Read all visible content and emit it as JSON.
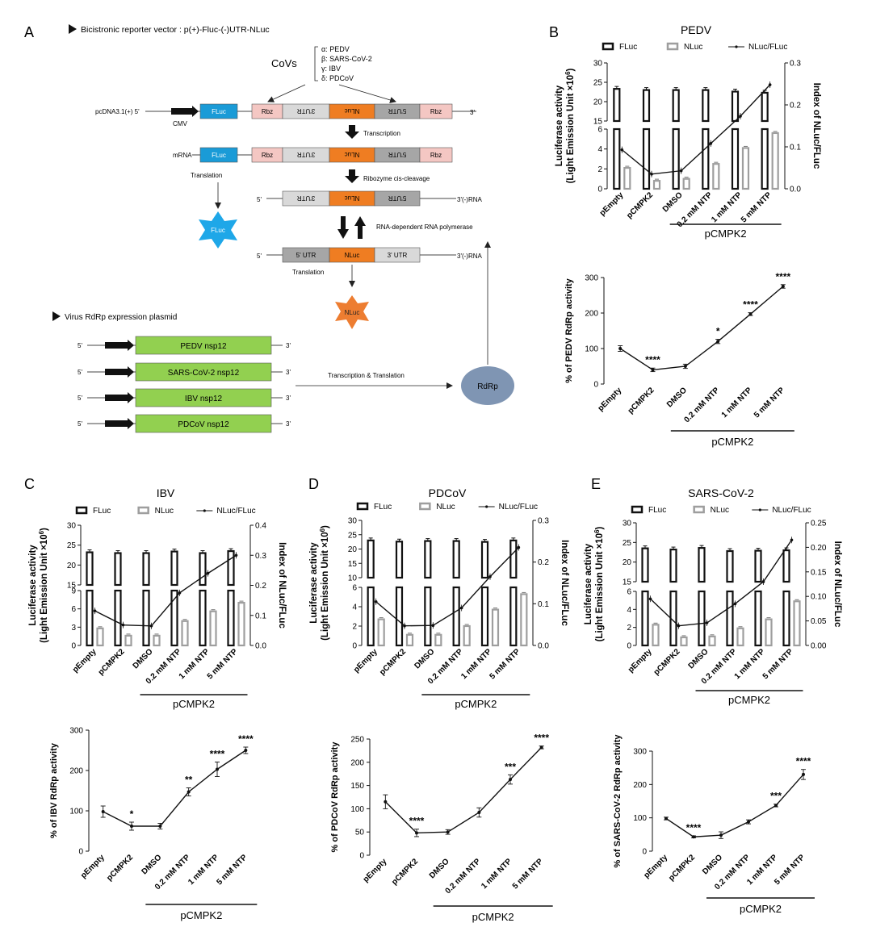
{
  "panel_letters": {
    "A": "A",
    "B": "B",
    "C": "C",
    "D": "D",
    "E": "E"
  },
  "schematic": {
    "vector_title": "Bicistronic reporter vector : p(+)-Fluc-(-)UTR-NLuc",
    "covs_label": "CoVs",
    "covs_list": [
      "α: PEDV",
      "β: SARS-CoV-2",
      "γ: IBV",
      "δ: PDCoV"
    ],
    "pcdna_label": "pcDNA3.1(+) 5'",
    "cmv_label": "CMV",
    "fluc": "FLuc",
    "rbz": "Rbz",
    "utr3": "3'UTR",
    "utr5": "5'UTR",
    "nluc": "NLuc",
    "five_prime": "5'",
    "three_prime": "3'",
    "mrna_label": "mRNA",
    "transcription": "Transcription",
    "translation": "Translation",
    "ribozyme": "Ribozyme cis-cleavage",
    "minus_rna": "3'(-)RNA",
    "rdrp_pol": "RNA-dependent RNA polymerase",
    "plus_utr5": "5' UTR",
    "plus_utr3": "3' UTR",
    "plus_rna": "3'(-)RNA",
    "fluc_star": "FLuc",
    "nluc_star": "NLuc",
    "plasmid_title": "Virus RdRp expression plasmid",
    "nsp12": [
      "PEDV nsp12",
      "SARS-CoV-2 nsp12",
      "IBV nsp12",
      "PDCoV nsp12"
    ],
    "tt_label": "Transcription & Translation",
    "rdrp": "RdRp"
  },
  "colors": {
    "fluc_blue": "#1a9bd7",
    "rbz_pink": "#f4c7c3",
    "utr_gray": "#d9d9d9",
    "utr_dark": "#a6a6a6",
    "nluc_orange": "#ef7d22",
    "nsp12_green": "#92d050",
    "rdrp_blue": "#7f95b3",
    "nluc_star": "#ed7d31",
    "fluc_star": "#1ea7e8"
  },
  "common": {
    "left_axis_line1": "Luciferase activity",
    "left_axis_line2": "(Light Emission Unit ×10",
    "left_axis_sup": "6",
    "left_axis_close": ")",
    "right_axis": "Index of NLuc/FLuc",
    "legend_fluc": "FLuc",
    "legend_nluc": "NLuc",
    "legend_ratio": "NLuc/FLuc",
    "group_label": "pCMPK2"
  },
  "chart_data": [
    {
      "id": "B-top",
      "type": "bar",
      "title": "PEDV",
      "categories": [
        "pEmpty",
        "pCMPK2",
        "DMSO",
        "0.2 mM NTP",
        "1 mM NTP",
        "5 mM NTP"
      ],
      "series": [
        {
          "name": "FLuc",
          "values": [
            23.3,
            23.0,
            23.0,
            23.0,
            22.6,
            22.3
          ],
          "axis": "left"
        },
        {
          "name": "NLuc",
          "values": [
            2.1,
            0.8,
            1.0,
            2.5,
            4.1,
            5.6
          ],
          "axis": "left"
        },
        {
          "name": "NLuc/FLuc",
          "values": [
            0.093,
            0.035,
            0.043,
            0.108,
            0.173,
            0.248
          ],
          "axis": "right"
        }
      ],
      "left_ticks_upper": [
        15,
        20,
        25,
        30
      ],
      "left_ticks_lower": [
        0,
        2,
        4,
        6
      ],
      "right_ticks": [
        0.0,
        0.1,
        0.2,
        0.3
      ],
      "right_tick_labels": [
        "0.0",
        "0.1",
        "0.2",
        "0.3"
      ],
      "ylabel": "Luciferase activity (Light Emission Unit ×10^6)",
      "y2label": "Index of NLuc/FLuc"
    },
    {
      "id": "B-bottom",
      "type": "line",
      "title": "",
      "categories": [
        "pEmpty",
        "pCMPK2",
        "DMSO",
        "0.2 mM NTP",
        "1 mM NTP",
        "5 mM NTP"
      ],
      "values": [
        100,
        40,
        50,
        120,
        197,
        275
      ],
      "errors": [
        8,
        5,
        6,
        6,
        4,
        5
      ],
      "significance": [
        "",
        "****",
        "",
        "*",
        "****",
        "****"
      ],
      "ylabel": "% of PEDV RdRp activity",
      "ylim": [
        0,
        300
      ],
      "yticks": [
        0,
        100,
        200,
        300
      ]
    },
    {
      "id": "C-top",
      "type": "bar",
      "title": "IBV",
      "categories": [
        "pEmpty",
        "pCMPK2",
        "DMSO",
        "0.2 mM NTP",
        "1 mM NTP",
        "5 mM NTP"
      ],
      "series": [
        {
          "name": "FLuc",
          "values": [
            23.2,
            23.0,
            23.0,
            23.4,
            23.0,
            23.5
          ],
          "axis": "left"
        },
        {
          "name": "NLuc",
          "values": [
            2.8,
            1.6,
            1.6,
            4.0,
            5.6,
            7.0
          ],
          "axis": "left"
        },
        {
          "name": "NLuc/FLuc",
          "values": [
            0.115,
            0.068,
            0.065,
            0.175,
            0.24,
            0.3
          ],
          "axis": "right"
        }
      ],
      "left_ticks_upper": [
        15,
        20,
        25,
        30
      ],
      "left_ticks_lower": [
        0,
        3,
        6,
        9
      ],
      "right_ticks": [
        0.0,
        0.1,
        0.2,
        0.3,
        0.4
      ],
      "right_tick_labels": [
        "0.0",
        "0.1",
        "0.2",
        "0.3",
        "0.4"
      ],
      "ylabel": "Luciferase activity (Light Emission Unit ×10^6)",
      "y2label": "Index of NLuc/FLuc"
    },
    {
      "id": "C-bottom",
      "type": "line",
      "title": "",
      "categories": [
        "pEmpty",
        "pCMPK2",
        "DMSO",
        "0.2 mM NTP",
        "1 mM NTP",
        "5 mM NTP"
      ],
      "values": [
        98,
        62,
        62,
        147,
        203,
        250
      ],
      "errors": [
        14,
        10,
        7,
        10,
        18,
        8
      ],
      "significance": [
        "",
        "*",
        "",
        "**",
        "****",
        "****"
      ],
      "ylabel": "% of IBV RdRp activity",
      "ylim": [
        0,
        300
      ],
      "yticks": [
        0,
        100,
        200,
        300
      ]
    },
    {
      "id": "D-top",
      "type": "bar",
      "title": "PDCoV",
      "categories": [
        "pEmpty",
        "pCMPK2",
        "DMSO",
        "0.2 mM NTP",
        "1 mM NTP",
        "5 mM NTP"
      ],
      "series": [
        {
          "name": "FLuc",
          "values": [
            23.0,
            22.6,
            22.8,
            22.8,
            22.5,
            23.0
          ],
          "axis": "left"
        },
        {
          "name": "NLuc",
          "values": [
            2.7,
            1.1,
            1.1,
            2.0,
            3.7,
            5.3
          ],
          "axis": "left"
        },
        {
          "name": "NLuc/FLuc",
          "values": [
            0.105,
            0.047,
            0.048,
            0.09,
            0.165,
            0.235
          ],
          "axis": "right"
        }
      ],
      "left_ticks_upper": [
        10,
        15,
        20,
        25,
        30
      ],
      "left_ticks_lower": [
        0,
        2,
        4,
        6
      ],
      "right_ticks": [
        0.0,
        0.1,
        0.2,
        0.3
      ],
      "right_tick_labels": [
        "0.0",
        "0.1",
        "0.2",
        "0.3"
      ],
      "ylabel": "Luciferase activity (Light Emission Unit ×10^6)",
      "y2label": "Index of NLuc/FLuc"
    },
    {
      "id": "D-bottom",
      "type": "line",
      "title": "",
      "categories": [
        "pEmpty",
        "pCMPK2",
        "DMSO",
        "0.2 mM NTP",
        "1 mM NTP",
        "5 mM NTP"
      ],
      "values": [
        115,
        48,
        50,
        92,
        163,
        232
      ],
      "errors": [
        15,
        8,
        5,
        10,
        10,
        3
      ],
      "significance": [
        "",
        "****",
        "",
        "",
        "***",
        "****"
      ],
      "ylabel": "% of PDCoV RdRp activity",
      "ylim": [
        0,
        250
      ],
      "yticks": [
        0,
        50,
        100,
        150,
        200,
        250
      ]
    },
    {
      "id": "E-top",
      "type": "bar",
      "title": "SARS-CoV-2",
      "categories": [
        "pEmpty",
        "pCMPK2",
        "DMSO",
        "0.2 mM NTP",
        "1 mM NTP",
        "5 mM NTP"
      ],
      "series": [
        {
          "name": "FLuc",
          "values": [
            23.5,
            23.2,
            23.6,
            22.8,
            22.9,
            23.0
          ],
          "axis": "left"
        },
        {
          "name": "NLuc",
          "values": [
            2.3,
            0.9,
            1.0,
            1.9,
            2.9,
            4.9
          ],
          "axis": "left"
        },
        {
          "name": "NLuc/FLuc",
          "values": [
            0.095,
            0.04,
            0.046,
            0.085,
            0.13,
            0.215
          ],
          "axis": "right"
        }
      ],
      "left_ticks_upper": [
        15,
        20,
        25,
        30
      ],
      "left_ticks_lower": [
        0,
        2,
        4,
        6
      ],
      "right_ticks": [
        0.0,
        0.05,
        0.1,
        0.15,
        0.2,
        0.25
      ],
      "right_tick_labels": [
        "0.00",
        "0.05",
        "0.10",
        "0.15",
        "0.20",
        "0.25"
      ],
      "ylabel": "Luciferase activity (Light Emission Unit ×10^6)",
      "y2label": "Index of NLuc/FLuc"
    },
    {
      "id": "E-bottom",
      "type": "line",
      "title": "",
      "categories": [
        "pEmpty",
        "pCMPK2",
        "DMSO",
        "0.2 mM NTP",
        "1 mM NTP",
        "5 mM NTP"
      ],
      "values": [
        98,
        43,
        48,
        88,
        137,
        230
      ],
      "errors": [
        4,
        3,
        10,
        6,
        4,
        15
      ],
      "significance": [
        "",
        "****",
        "",
        "",
        "***",
        "****"
      ],
      "ylabel": "% of SARS-CoV-2 RdRp activity",
      "ylim": [
        0,
        300
      ],
      "yticks": [
        0,
        100,
        200,
        300
      ]
    }
  ]
}
